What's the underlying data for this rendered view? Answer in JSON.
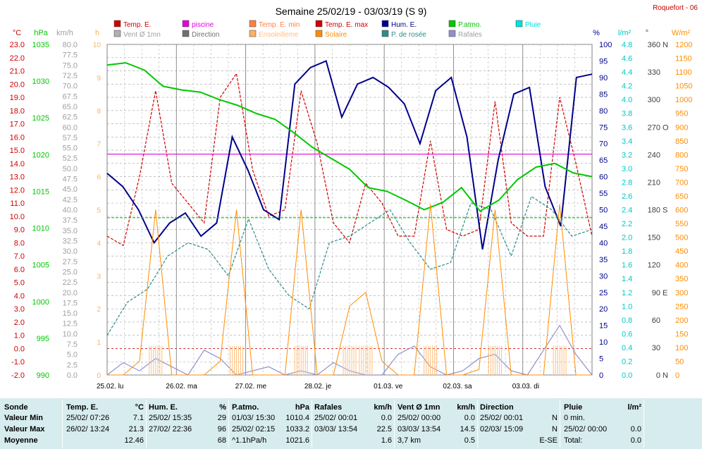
{
  "chart_data": {
    "type": "line",
    "title": "Semaine 25/02/19 - 03/03/19 (S 9)",
    "station": "Roquefort - 06",
    "x_labels": [
      "25.02. lu",
      "26.02. ma",
      "27.02. me",
      "28.02. je",
      "01.03. ve",
      "02.03. sa",
      "03.03. di"
    ],
    "legend": [
      {
        "label": "Temp. E.",
        "color": "#d00000"
      },
      {
        "label": "piscine",
        "color": "#e000e0"
      },
      {
        "label": "Temp. E. min",
        "color": "#ff8040"
      },
      {
        "label": "Temp. E. max",
        "color": "#d00000"
      },
      {
        "label": "Hum. E.",
        "color": "#00008b"
      },
      {
        "label": "P.atmo.",
        "color": "#00c800"
      },
      {
        "label": "Pluie",
        "color": "#00e0e0"
      },
      {
        "label": "Vent Ø 1mn",
        "color": "#b0b0b0"
      },
      {
        "label": "Direction",
        "color": "#707070"
      },
      {
        "label": "Ensoleilleme",
        "color": "#ffb060"
      },
      {
        "label": "Solaire",
        "color": "#ff8c00"
      },
      {
        "label": "P. de rosée",
        "color": "#2e8b8b"
      },
      {
        "label": "Rafales",
        "color": "#9090d0"
      }
    ],
    "axes": {
      "temp": {
        "unit": "°C",
        "min": -2,
        "max": 23,
        "step": 1,
        "color": "#d00000"
      },
      "pressure": {
        "unit": "hPa",
        "min": 990,
        "max": 1035,
        "step": 5,
        "color": "#00c800"
      },
      "wind": {
        "unit": "km/h",
        "min": 0,
        "max": 80,
        "step": 2.5,
        "color": "#a0a0a0"
      },
      "sun_hours": {
        "unit": "h",
        "min": 0,
        "max": 10,
        "step": 1,
        "color": "#ffb060"
      },
      "humidity": {
        "unit": "%",
        "min": 0,
        "max": 100,
        "step": 5,
        "color": "#00008b"
      },
      "rain": {
        "unit": "l/m²",
        "min": 0,
        "max": 4.8,
        "step": 0.2,
        "color": "#00c8c8"
      },
      "direction": {
        "unit": "°",
        "min": 0,
        "max": 360,
        "step": 30,
        "color": "#404040",
        "compass": {
          "0": "N",
          "90": "E",
          "180": "S",
          "270": "O",
          "360": "N"
        }
      },
      "solar": {
        "unit": "W/m²",
        "min": 0,
        "max": 1200,
        "step": 50,
        "color": "#ff8c00"
      }
    },
    "series": [
      {
        "name": "Temp. E.",
        "axis": "temp",
        "color": "#d00000",
        "dash": true,
        "values": [
          8.5,
          7.8,
          13,
          19.5,
          12.5,
          11,
          9.5,
          19,
          20.8,
          13.5,
          10,
          10.5,
          19.5,
          15.5,
          9.5,
          8,
          12.5,
          11,
          8.5,
          8.5,
          15.7,
          9,
          8.5,
          9,
          18.7,
          9.5,
          8.5,
          8.5,
          19,
          14,
          8.5
        ]
      },
      {
        "name": "piscine",
        "axis": "temp",
        "color": "#e000e0",
        "dash": false,
        "values": [
          14.7,
          14.7,
          14.7,
          14.7,
          14.7,
          14.7,
          14.7,
          14.7,
          14.7,
          14.7,
          14.7,
          14.7,
          14.7,
          14.7,
          14.7,
          14.7,
          14.7,
          14.7,
          14.7,
          14.7,
          14.7,
          14.7,
          14.7,
          14.7,
          14.7,
          14.7,
          14.7,
          14.7,
          14.7,
          14.7,
          14.7
        ]
      },
      {
        "name": "Hum. E.",
        "axis": "humidity",
        "color": "#00008b",
        "dash": false,
        "values": [
          61,
          57,
          50,
          40,
          46,
          49,
          42,
          46,
          72,
          62,
          50,
          47,
          88,
          93,
          95,
          78,
          88,
          90,
          87,
          82,
          70,
          86,
          90,
          72,
          38,
          65,
          85,
          87,
          57,
          45,
          90,
          91
        ]
      },
      {
        "name": "P.atmo.",
        "axis": "pressure",
        "color": "#00c800",
        "dash": false,
        "values": [
          1032.2,
          1032.5,
          1031.5,
          1029.3,
          1028.8,
          1028.5,
          1027.5,
          1026.7,
          1025.6,
          1024.8,
          1023,
          1021,
          1019.5,
          1018,
          1015.5,
          1015,
          1013.8,
          1012.5,
          1013.5,
          1015.5,
          1012.3,
          1013.8,
          1016.6,
          1018.3,
          1018.8,
          1017.5,
          1017
        ]
      },
      {
        "name": "Pluie",
        "axis": "temp",
        "color": "#00c800",
        "dash": true,
        "values": [
          9.9,
          9.9,
          9.9,
          9.9,
          9.9,
          9.9,
          9.9,
          9.9,
          9.9,
          9.9,
          9.9,
          9.9,
          9.9,
          9.9
        ]
      },
      {
        "name": "P. de rosée",
        "axis": "temp",
        "color": "#2e8b8b",
        "dash": true,
        "values": [
          1,
          3.5,
          4.5,
          7,
          8,
          7.5,
          5.5,
          9.8,
          6,
          4,
          3,
          8,
          8.5,
          9.5,
          10.5,
          8,
          6,
          6.5,
          11,
          10.5,
          7,
          11.5,
          10.5,
          8.5,
          9
        ]
      },
      {
        "name": "Rafales",
        "axis": "wind",
        "color": "#9090d0",
        "dash": false,
        "values": [
          0,
          3,
          1,
          4,
          2,
          0,
          6,
          4,
          0,
          1,
          2,
          0,
          1,
          0,
          3,
          1,
          0,
          0,
          5,
          7,
          2,
          0,
          1,
          4,
          5,
          1,
          0,
          6,
          12,
          5,
          0
        ]
      },
      {
        "name": "Solaire",
        "axis": "solar",
        "color": "#ff8c00",
        "dash": false,
        "values": [
          0,
          0,
          50,
          600,
          0,
          0,
          0,
          50,
          600,
          0,
          0,
          0,
          600,
          0,
          0,
          250,
          300,
          50,
          0,
          0,
          620,
          0,
          0,
          20,
          600,
          0,
          0,
          0,
          620,
          0,
          0
        ]
      }
    ]
  },
  "stats": {
    "columns": [
      {
        "title": "Sonde",
        "rows": [
          "Valeur Min",
          "Valeur Max",
          "Moyenne"
        ]
      },
      {
        "title": "Temp. E.",
        "unit": "°C",
        "rows": [
          [
            "25/02/ 07:26",
            "7.1"
          ],
          [
            "26/02/ 13:24",
            "21.3"
          ],
          [
            "",
            "12.46"
          ]
        ]
      },
      {
        "title": "Hum. E.",
        "unit": "%",
        "rows": [
          [
            "25/02/ 15:35",
            "29"
          ],
          [
            "27/02/ 22:36",
            "96"
          ],
          [
            "",
            "68"
          ]
        ]
      },
      {
        "title": "P.atmo.",
        "unit": "hPa",
        "rows": [
          [
            "01/03/ 15:30",
            "1010.4"
          ],
          [
            "25/02/ 02:15",
            "1033.2"
          ],
          [
            "^1.1hPa/h",
            "1021.6"
          ]
        ]
      },
      {
        "title": "Rafales",
        "unit": "km/h",
        "rows": [
          [
            "25/02/ 00:01",
            "0.0"
          ],
          [
            "03/03/ 13:54",
            "22.5"
          ],
          [
            "",
            "1.6"
          ]
        ]
      },
      {
        "title": "Vent Ø 1mn",
        "unit": "km/h",
        "rows": [
          [
            "25/02/ 00:00",
            "0.0"
          ],
          [
            "03/03/ 13:54",
            "14.5"
          ],
          [
            "3,7 km",
            "0.5"
          ]
        ]
      },
      {
        "title": "Direction",
        "unit": "",
        "rows": [
          [
            "25/02/ 00:01",
            "N"
          ],
          [
            "02/03/ 15:09",
            "N"
          ],
          [
            "",
            "E-SE"
          ]
        ]
      },
      {
        "title": "Pluie",
        "unit": "l/m²",
        "rows": [
          [
            "0 min.",
            ""
          ],
          [
            "25/02/ 00:00",
            "0.0"
          ],
          [
            "Total:",
            "0.0"
          ]
        ]
      }
    ]
  }
}
